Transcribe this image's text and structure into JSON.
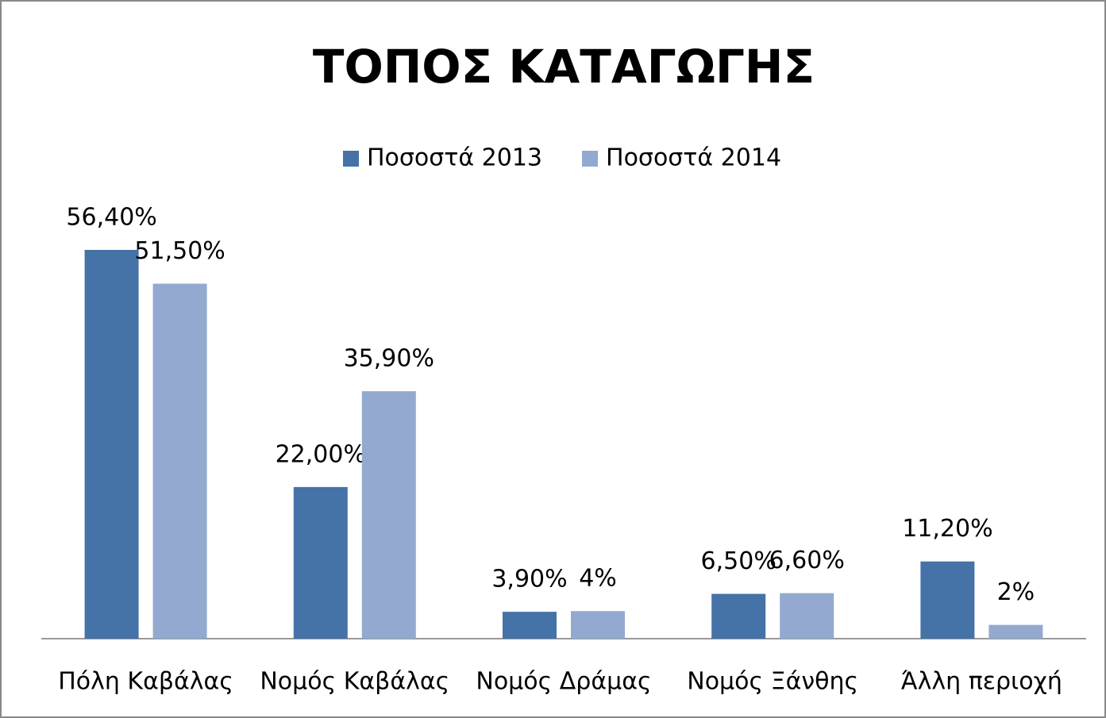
{
  "chart_data": {
    "type": "bar",
    "title": "ΤΟΠΟΣ ΚΑΤΑΓΩΓΗΣ",
    "categories": [
      "Πόλη Καβάλας",
      "Νομός Καβάλας",
      "Νομός Δράμας",
      "Νομός Ξάνθης",
      "Άλλη περιοχή"
    ],
    "series": [
      {
        "name": "Ποσοστά 2013",
        "color": "#4572a7",
        "values": [
          56.4,
          22.0,
          3.9,
          6.5,
          11.2
        ],
        "value_labels": [
          "56,40%",
          "22,00%",
          "3,90%",
          "6,50%",
          "11,20%"
        ]
      },
      {
        "name": "Ποσοστά 2014",
        "color": "#93a9cf",
        "values": [
          51.5,
          35.9,
          4,
          6.6,
          2
        ],
        "value_labels": [
          "51,50%",
          "35,90%",
          "4%",
          "6,60%",
          "2%"
        ]
      }
    ],
    "legend": "top"
  }
}
